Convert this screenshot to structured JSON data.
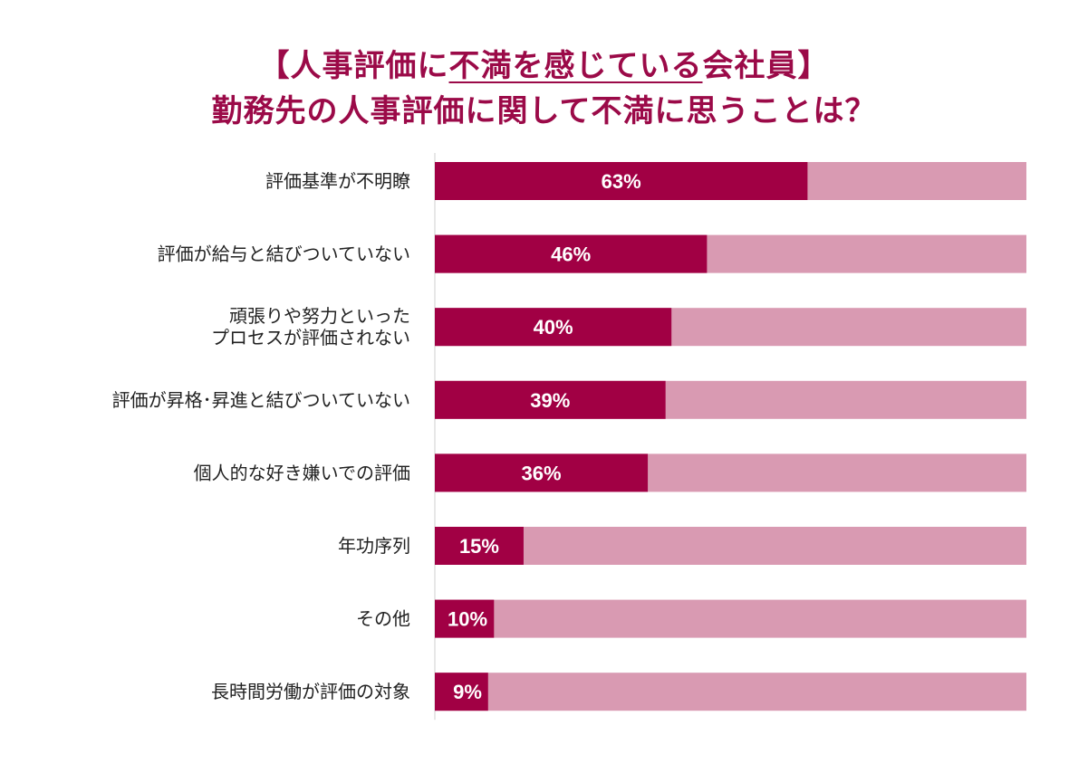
{
  "title": {
    "line1_prefix": "【人事評価に",
    "line1_underlined": "不満を感じている",
    "line1_suffix": "会社員】",
    "line2": "勤務先の人事評価に関して不満に思うことは？"
  },
  "colors": {
    "bar": "#a10044",
    "track": "#d99ab2",
    "title": "#9b0a48",
    "label": "#222222",
    "value_text": "#ffffff",
    "axis": "#cfcfcf"
  },
  "chart_data": {
    "type": "bar",
    "orientation": "horizontal",
    "stacked_to_100": true,
    "categories": [
      [
        "評価基準が不明瞭"
      ],
      [
        "評価が給与と結びついていない"
      ],
      [
        "頑張りや努力といった",
        "プロセスが評価されない"
      ],
      [
        "評価が昇格･昇進と結びついていない"
      ],
      [
        "個人的な好き嫌いでの評価"
      ],
      [
        "年功序列"
      ],
      [
        "その他"
      ],
      [
        "長時間労働が評価の対象"
      ]
    ],
    "values": [
      63,
      46,
      40,
      39,
      36,
      15,
      10,
      9
    ],
    "value_labels": [
      "63%",
      "46%",
      "40%",
      "39%",
      "36%",
      "15%",
      "10%",
      "9%"
    ],
    "xlim": [
      0,
      100
    ],
    "grid": false,
    "legend": "none"
  }
}
